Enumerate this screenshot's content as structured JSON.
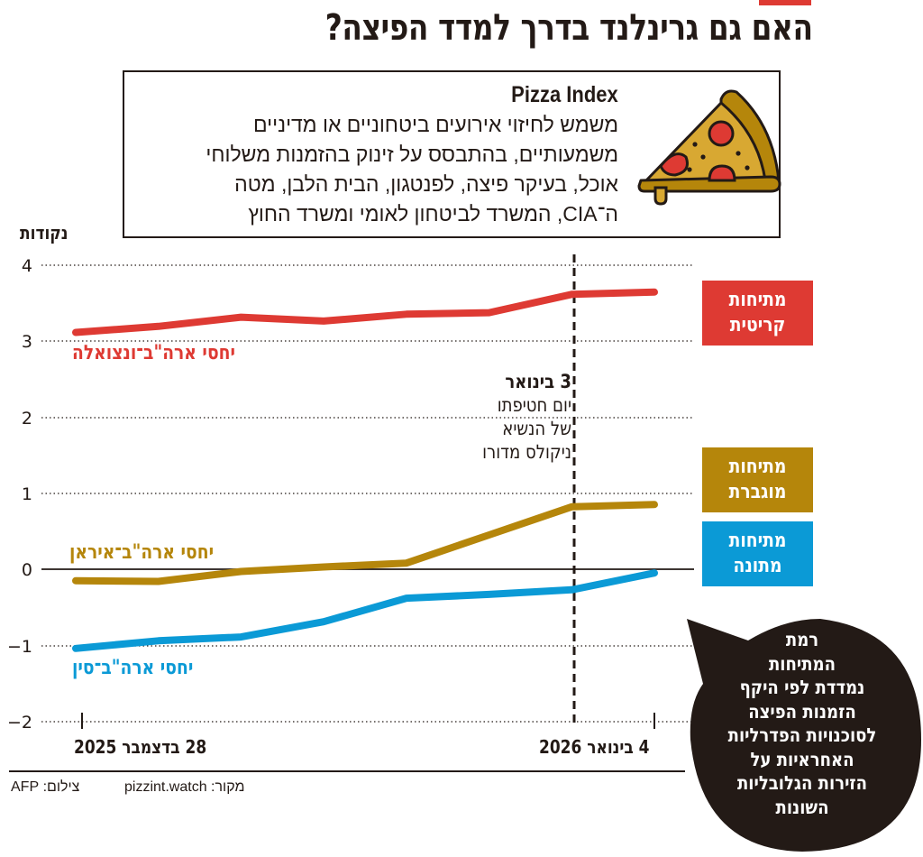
{
  "header": {
    "title": "האם גם גרינלנד בדרך למדד הפיצה?",
    "accent_color": "#de3a33"
  },
  "info_box": {
    "heading": "Pizza Index",
    "lines": [
      "משמש לחיזוי אירועים ביטחוניים או מדיניים",
      "משמעותיים, בהתבסס על זינוק בהזמנות משלוחי",
      "אוכל, בעיקר פיצה, לפנטגון, הבית הלבן, מטה",
      "ה־CIA, המשרד לביטחון לאומי ומשרד החוץ"
    ],
    "icon": "pizza-slice-icon"
  },
  "legend": [
    {
      "label_line1": "מתיחות",
      "label_line2": "קריטית",
      "color": "#de3a33"
    },
    {
      "label_line1": "מתיחות",
      "label_line2": "מוגברת",
      "color": "#b5860b"
    },
    {
      "label_line1": "מתיחות",
      "label_line2": "מתונה",
      "color": "#0b9ad6"
    }
  ],
  "annotation": {
    "date": "3 בינואר",
    "line1": "יום חטיפתו",
    "line2": "של הנשיא",
    "line3": "ניקולס מדורו"
  },
  "bubble": {
    "lines": [
      "רמת",
      "המתיחות",
      "נמדדת לפי היקף",
      "הזמנות הפיצה",
      "לסוכנויות הפדרליות",
      "האחראיות על",
      "הזירות הגלובליות",
      "השונות"
    ],
    "color": "#231a16"
  },
  "credits": {
    "source": "מקור: pizzint.watch",
    "photo": "צילום: AFP"
  },
  "chart_data": {
    "type": "line",
    "title": "האם גם גרינלנד בדרך למדד הפיצה?",
    "xlabel": "",
    "ylabel": "נקודות",
    "ylim": [
      -2,
      4
    ],
    "yticks": [
      "4",
      "3",
      "2",
      "1",
      "0",
      "−1",
      "−2"
    ],
    "x_tick_labels": [
      "28 בדצמבר 2025",
      "4 בינואר 2026"
    ],
    "x": [
      "28.12.2025",
      "29.12.2025",
      "30.12.2025",
      "31.12.2025",
      "1.1.2026",
      "2.1.2026",
      "3.1.2026",
      "4.1.2026"
    ],
    "grid": "dotted horizontal",
    "vertical_marker": {
      "x": "3.1.2026",
      "label": "3 בינואר — יום חטיפתו של הנשיא ניקולס מדורו"
    },
    "series": [
      {
        "name": "יחסי ארה\"ב־ונצואלה",
        "color": "#de3a33",
        "values": [
          3.11,
          3.19,
          3.31,
          3.26,
          3.35,
          3.37,
          3.61,
          3.64
        ]
      },
      {
        "name": "יחסי ארה\"ב־איראן",
        "color": "#b5860b",
        "values": [
          -0.15,
          -0.16,
          -0.03,
          0.03,
          0.08,
          0.45,
          0.82,
          0.85
        ]
      },
      {
        "name": "יחסי ארה\"ב־סין",
        "color": "#0b9ad6",
        "values": [
          -1.04,
          -0.94,
          -0.89,
          -0.69,
          -0.38,
          -0.33,
          -0.27,
          -0.05
        ]
      }
    ],
    "legend_position": "right",
    "legend": [
      "מתיחות קריטית",
      "מתיחות מוגברת",
      "מתיחות מתונה"
    ]
  }
}
